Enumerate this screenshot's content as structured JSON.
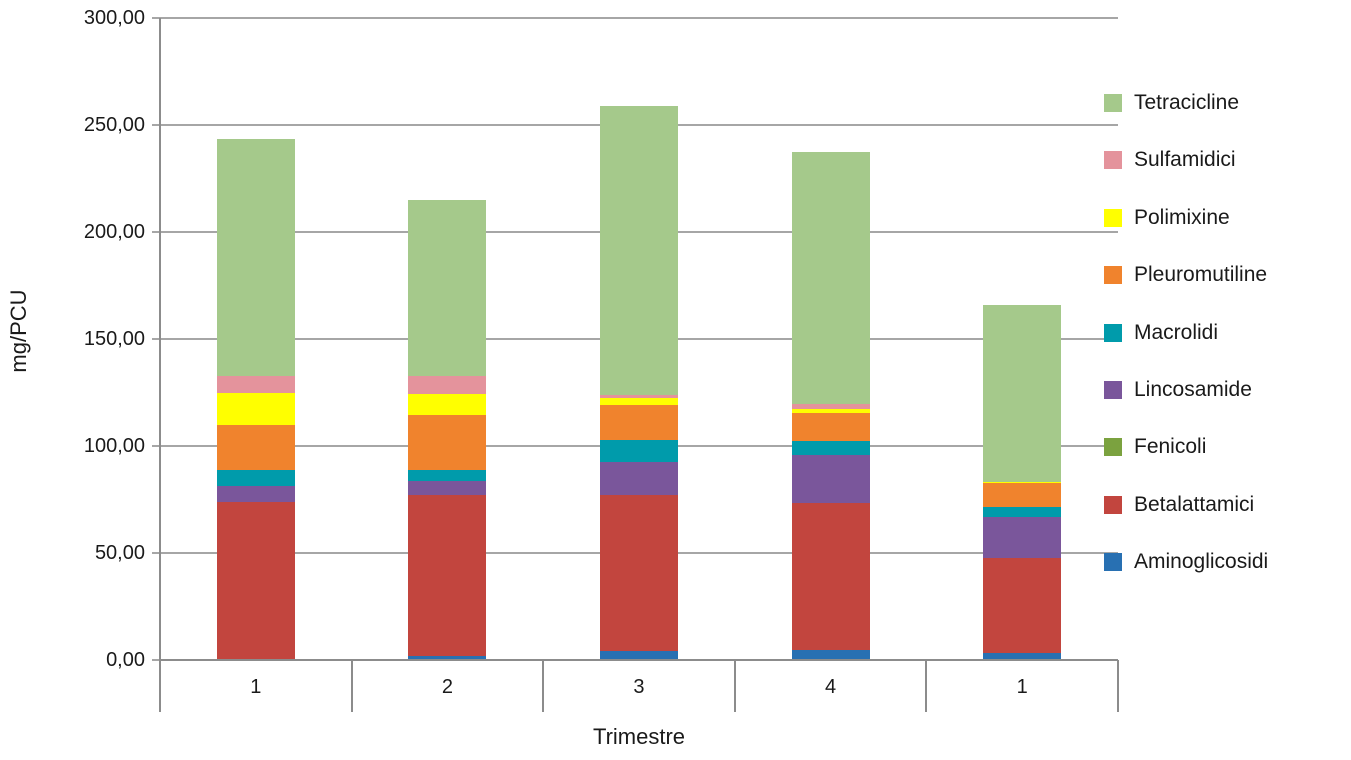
{
  "chart_data": {
    "type": "bar",
    "stacked": true,
    "title": "",
    "xlabel": "Trimestre",
    "ylabel": "mg/PCU",
    "categories": [
      "1",
      "2",
      "3",
      "4",
      "1"
    ],
    "ylim": [
      0,
      300
    ],
    "ytick_step": 50,
    "ytick_labels": [
      "0,00",
      "50,00",
      "100,00",
      "150,00",
      "200,00",
      "250,00",
      "300,00"
    ],
    "grid": true,
    "legend_position": "right",
    "series": [
      {
        "name": "Aminoglicosidi",
        "color": "#2870b2",
        "values": [
          0.4,
          2.0,
          4.4,
          4.7,
          3.4
        ]
      },
      {
        "name": "Betalattamici",
        "color": "#c2453e",
        "values": [
          73.4,
          75.1,
          72.7,
          68.7,
          44.3
        ]
      },
      {
        "name": "Fenicoli",
        "color": "#7ba23f",
        "values": [
          0,
          0,
          0,
          0,
          0
        ]
      },
      {
        "name": "Lincosamide",
        "color": "#7a569b",
        "values": [
          7.5,
          6.5,
          15.4,
          22.4,
          19.1
        ]
      },
      {
        "name": "Macrolidi",
        "color": "#009bab",
        "values": [
          7.5,
          5.2,
          10.3,
          6.5,
          4.7
        ]
      },
      {
        "name": "Pleuromutiline",
        "color": "#f0832d",
        "values": [
          21.0,
          25.7,
          16.4,
          13.1,
          11.2
        ]
      },
      {
        "name": "Polimixine",
        "color": "#ffff00",
        "values": [
          15.0,
          9.8,
          3.2,
          1.9,
          0.7
        ]
      },
      {
        "name": "Sulfamidici",
        "color": "#e4939c",
        "values": [
          7.9,
          8.4,
          1.4,
          2.3,
          0
        ]
      },
      {
        "name": "Tetracicline",
        "color": "#a5c98b",
        "values": [
          110.6,
          82.3,
          135.2,
          117.8,
          82.7
        ]
      }
    ],
    "bar_totals": [
      243.3,
      215.0,
      259.0,
      237.4,
      166.1
    ],
    "legend_order": [
      "Tetracicline",
      "Sulfamidici",
      "Polimixine",
      "Pleuromutiline",
      "Macrolidi",
      "Lincosamide",
      "Fenicoli",
      "Betalattamici",
      "Aminoglicosidi"
    ],
    "colors": {
      "gridline": "#a6a6a6",
      "axis": "#8c8c8c"
    }
  }
}
